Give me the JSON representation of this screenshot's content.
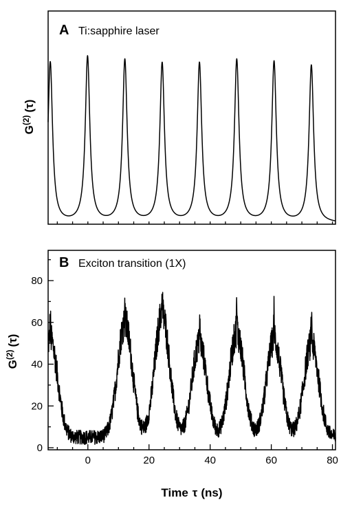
{
  "chart_data": [
    {
      "panel": "A",
      "type": "line",
      "title": "Ti:sapphire laser",
      "ylabel_main": "G",
      "ylabel_sup": "(2)",
      "ylabel_arg": "(τ)",
      "xlim": [
        -13,
        81
      ],
      "ylim": [
        0,
        1.0
      ],
      "grid": false,
      "x_ticks_shown": false,
      "y_ticks_shown": false,
      "peak_centers_ns": [
        -12.3,
        -0.1,
        12.1,
        24.3,
        36.5,
        48.7,
        60.9,
        73.1
      ],
      "peak_heights": [
        0.97,
        1.0,
        0.98,
        0.96,
        0.96,
        0.98,
        0.97,
        0.95
      ],
      "peak_width_ns": 0.9
    },
    {
      "panel": "B",
      "type": "line",
      "title": "Exciton transition (1X)",
      "ylabel_main": "G",
      "ylabel_sup": "(2)",
      "ylabel_arg": "(τ)",
      "xlabel_main": "Time",
      "xlabel_sym": "τ",
      "xlabel_unit": "(ns)",
      "xlim": [
        -13,
        81
      ],
      "ylim": [
        0,
        95
      ],
      "grid": false,
      "x_ticks": [
        0,
        20,
        40,
        60,
        80
      ],
      "y_ticks": [
        0,
        20,
        40,
        60,
        80
      ],
      "x_tick_labels": [
        "0",
        "20",
        "40",
        "60",
        "80"
      ],
      "y_tick_labels": [
        "0",
        "20",
        "40",
        "60",
        "80"
      ],
      "baseline": 5,
      "peak_centers_ns": [
        -12.3,
        12.1,
        24.3,
        36.5,
        48.7,
        60.9,
        73.1
      ],
      "peak_heights": [
        52,
        60,
        64,
        50,
        55,
        52,
        50
      ],
      "peak_max_spikes": [
        64,
        79,
        81,
        66,
        73,
        68,
        70
      ],
      "peak_width_ns": 2.4
    }
  ]
}
